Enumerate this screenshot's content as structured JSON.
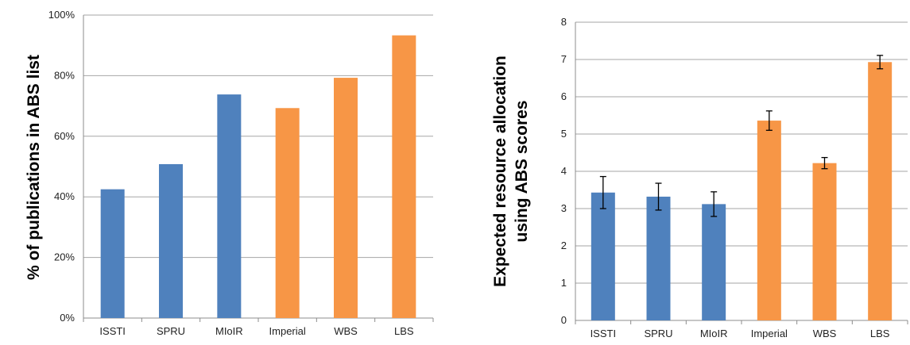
{
  "colors": {
    "blue": "#4f81bd",
    "orange": "#f79646",
    "grid": "#a6a6a6",
    "axis": "#8c8c8c",
    "errorbar": "#000000"
  },
  "chart_data": [
    {
      "type": "bar",
      "categories": [
        "ISSTI",
        "SPRU",
        "MIoIR",
        "Imperial",
        "WBS",
        "LBS"
      ],
      "values": [
        42.5,
        50.8,
        73.8,
        69.3,
        79.3,
        93.3
      ],
      "bar_colors": [
        "blue",
        "blue",
        "blue",
        "orange",
        "orange",
        "orange"
      ],
      "ylabel": "% of publications in ABS list",
      "xlabel": "",
      "ylim": [
        0,
        100
      ],
      "yticks": [
        0,
        20,
        40,
        60,
        80,
        100
      ],
      "ytick_labels": [
        "0%",
        "20%",
        "40%",
        "60%",
        "80%",
        "100%"
      ],
      "grid": true,
      "legend": "none"
    },
    {
      "type": "bar",
      "categories": [
        "ISSTI",
        "SPRU",
        "MIoIR",
        "Imperial",
        "WBS",
        "LBS"
      ],
      "values": [
        3.43,
        3.32,
        3.12,
        5.36,
        4.22,
        6.93
      ],
      "errors": [
        0.43,
        0.36,
        0.33,
        0.26,
        0.15,
        0.18
      ],
      "bar_colors": [
        "blue",
        "blue",
        "blue",
        "orange",
        "orange",
        "orange"
      ],
      "ylabel": [
        "Expected resource allocation",
        "using ABS scores"
      ],
      "xlabel": "",
      "ylim": [
        0,
        8
      ],
      "yticks": [
        0,
        1,
        2,
        3,
        4,
        5,
        6,
        7,
        8
      ],
      "ytick_labels": [
        "0",
        "1",
        "2",
        "3",
        "4",
        "5",
        "6",
        "7",
        "8"
      ],
      "grid": true,
      "legend": "none"
    }
  ]
}
